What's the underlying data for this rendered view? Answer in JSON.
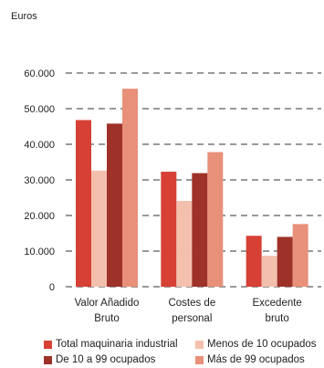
{
  "chart_data": {
    "type": "bar",
    "unit": "Euros",
    "categories": [
      [
        "Valor Añadido",
        "Bruto"
      ],
      [
        "Costes de",
        "personal"
      ],
      [
        "Excedente",
        "bruto"
      ]
    ],
    "y_ticks": [
      "0",
      "10.000",
      "20.000",
      "30.000",
      "40.000",
      "50.000",
      "60.000"
    ],
    "ylim": [
      0,
      60000
    ],
    "series": [
      {
        "name": "Total maquinaria industrial",
        "color": "#d64035",
        "values": [
          46800,
          32300,
          14300
        ]
      },
      {
        "name": "Menos de 10 ocupados",
        "color": "#f4c0ae",
        "values": [
          32600,
          24100,
          8700
        ]
      },
      {
        "name": "De 10 a 99 ocupados",
        "color": "#9e3229",
        "values": [
          45800,
          31900,
          14000
        ]
      },
      {
        "name": "Más de 99 ocupados",
        "color": "#e8907a",
        "values": [
          55600,
          37800,
          17600
        ]
      }
    ],
    "legend_position": "bottom",
    "grid": "dashed"
  }
}
